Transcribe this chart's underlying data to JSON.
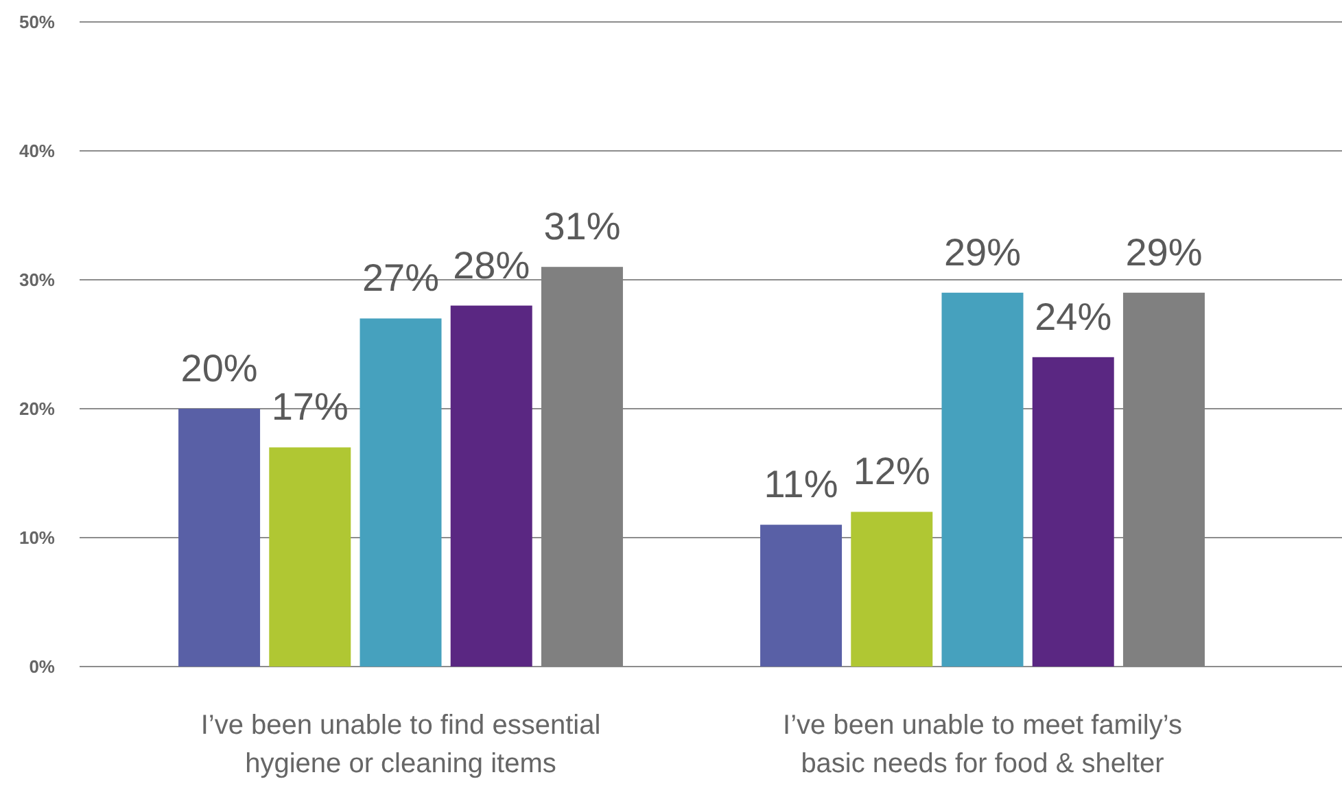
{
  "chart_data": {
    "type": "bar",
    "categories": [
      "I’ve been unable to find essential hygiene or cleaning items",
      "I’ve been unable to meet family’s basic needs for food & shelter"
    ],
    "series": [
      {
        "color": "#5960a6",
        "values": [
          20,
          11
        ],
        "value_labels": [
          "20%",
          "11%"
        ]
      },
      {
        "color": "#b0c733",
        "values": [
          17,
          12
        ],
        "value_labels": [
          "17%",
          "12%"
        ]
      },
      {
        "color": "#46a1be",
        "values": [
          27,
          29
        ],
        "value_labels": [
          "27%",
          "29%"
        ]
      },
      {
        "color": "#5a2782",
        "values": [
          28,
          24
        ],
        "value_labels": [
          "28%",
          "24%"
        ]
      },
      {
        "color": "#808080",
        "values": [
          31,
          29
        ],
        "value_labels": [
          "31%",
          "29%"
        ]
      }
    ],
    "ylim": [
      0,
      50
    ],
    "yticks": [
      {
        "value": 0,
        "label": "0%"
      },
      {
        "value": 10,
        "label": "10%"
      },
      {
        "value": 20,
        "label": "20%"
      },
      {
        "value": 30,
        "label": "30%"
      },
      {
        "value": 40,
        "label": "40%"
      },
      {
        "value": 50,
        "label": "50%"
      }
    ],
    "grid": "y"
  }
}
